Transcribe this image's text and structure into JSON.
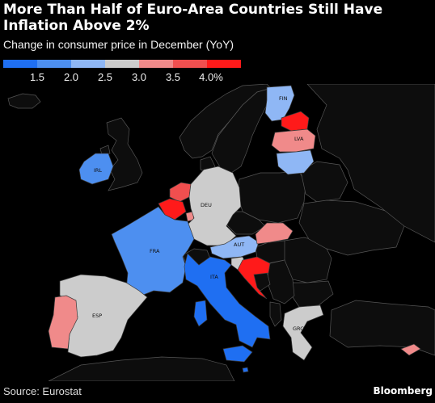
{
  "title": "More Than Half of Euro-Area Countries Still Have Inflation Above 2%",
  "subtitle": "Change in consumer price in December (YoY)",
  "legend": {
    "colors": [
      "#1f6ff2",
      "#4d8ff0",
      "#8fb7f5",
      "#cccccc",
      "#f08a8a",
      "#f04f4f",
      "#ff1a1a"
    ],
    "ticks": [
      "1.5",
      "2.0",
      "2.5",
      "3.0",
      "3.5",
      "4.0%"
    ]
  },
  "map": {
    "background_country_color": "#0d0d0d",
    "border_color": "#555555",
    "country_labels": {
      "fin": "FIN",
      "lva": "LVA",
      "irl": "IRL",
      "deu": "DEU",
      "fra": "FRA",
      "aut": "AUT",
      "ita": "ITA",
      "esp": "ESP",
      "grc": "GRC"
    },
    "country_colors": {
      "fin": "#8fb7f5",
      "est": "#ff1a1a",
      "lva": "#f08a8a",
      "ltu": "#8fb7f5",
      "irl": "#4d8ff0",
      "bel": "#ff1a1a",
      "nld": "#f04f4f",
      "lux": "#f08a8a",
      "deu": "#cccccc",
      "fra": "#4d8ff0",
      "aut": "#8fb7f5",
      "svk": "#f08a8a",
      "svn": "#cccccc",
      "hrv": "#ff1a1a",
      "ita": "#1f6ff2",
      "esp": "#cccccc",
      "prt": "#f08a8a",
      "grc": "#cccccc",
      "mlt": "#1f6ff2",
      "cyp": "#f08a8a"
    }
  },
  "source": "Source: Eurostat",
  "credit": "Bloomberg"
}
